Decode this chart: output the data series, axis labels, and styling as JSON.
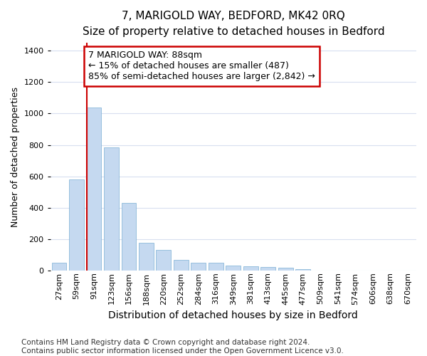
{
  "title": "7, MARIGOLD WAY, BEDFORD, MK42 0RQ",
  "subtitle": "Size of property relative to detached houses in Bedford",
  "xlabel": "Distribution of detached houses by size in Bedford",
  "ylabel": "Number of detached properties",
  "categories": [
    "27sqm",
    "59sqm",
    "91sqm",
    "123sqm",
    "156sqm",
    "188sqm",
    "220sqm",
    "252sqm",
    "284sqm",
    "316sqm",
    "349sqm",
    "381sqm",
    "413sqm",
    "445sqm",
    "477sqm",
    "509sqm",
    "541sqm",
    "574sqm",
    "606sqm",
    "638sqm",
    "670sqm"
  ],
  "values": [
    47,
    578,
    1040,
    785,
    430,
    178,
    130,
    65,
    50,
    47,
    30,
    28,
    20,
    15,
    10,
    0,
    0,
    0,
    0,
    0,
    0
  ],
  "bar_color": "#c5d9f0",
  "bar_edge_color": "#7bafd4",
  "vline_color": "#cc0000",
  "vline_index": 2,
  "annotation_text": "7 MARIGOLD WAY: 88sqm\n← 15% of detached houses are smaller (487)\n85% of semi-detached houses are larger (2,842) →",
  "annotation_box_facecolor": "#ffffff",
  "annotation_box_edgecolor": "#cc0000",
  "ylim_max": 1450,
  "fig_bg": "#ffffff",
  "plot_bg": "#ffffff",
  "grid_color": "#d8dff0",
  "title_fontsize": 11,
  "ylabel_fontsize": 9,
  "xlabel_fontsize": 10,
  "tick_fontsize": 8,
  "annot_fontsize": 9,
  "footer_fontsize": 7.5,
  "footer_line1": "Contains HM Land Registry data © Crown copyright and database right 2024.",
  "footer_line2": "Contains public sector information licensed under the Open Government Licence v3.0."
}
